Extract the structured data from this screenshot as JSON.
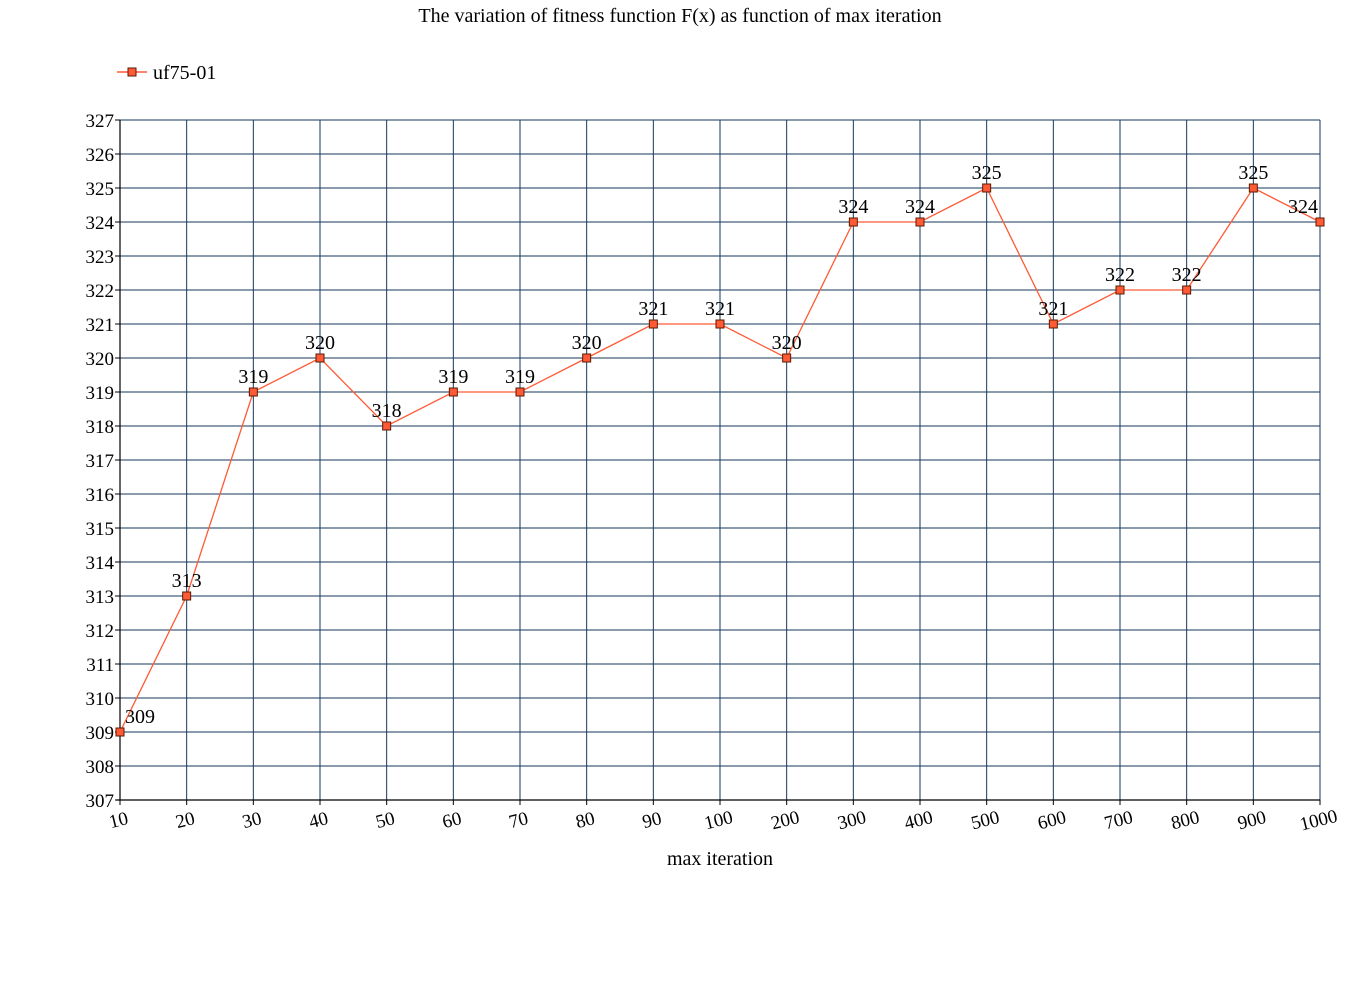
{
  "chart_data": {
    "type": "line",
    "title": "The variation of fitness function F(x) as function of max iteration",
    "xlabel": "max iteration",
    "ylabel": "",
    "categories": [
      "10",
      "20",
      "30",
      "40",
      "50",
      "60",
      "70",
      "80",
      "90",
      "100",
      "200",
      "300",
      "400",
      "500",
      "600",
      "700",
      "800",
      "900",
      "1000"
    ],
    "series": [
      {
        "name": "uf75-01",
        "values": [
          309,
          313,
          319,
          320,
          318,
          319,
          319,
          320,
          321,
          321,
          320,
          324,
          324,
          325,
          321,
          322,
          322,
          325,
          324
        ],
        "color": "#ff5a36",
        "marker": "square"
      }
    ],
    "ylim": [
      307,
      327
    ],
    "yticks": [
      307,
      308,
      309,
      310,
      311,
      312,
      313,
      314,
      315,
      316,
      317,
      318,
      319,
      320,
      321,
      322,
      323,
      324,
      325,
      326,
      327
    ],
    "grid": true,
    "grid_color": "#17375e",
    "legend": "top-left",
    "data_labels": true
  }
}
